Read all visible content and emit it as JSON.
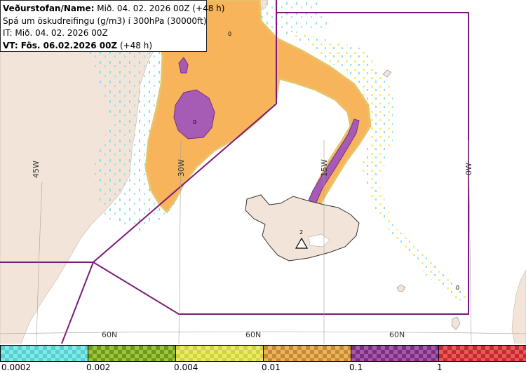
{
  "header": {
    "line1_bold": "Veðurstofan/Name:",
    "line1_rest": " Mið. 04. 02. 2026 00Z (+48 h)",
    "line2": "Spá um öskudreifingu (g/m3) í 300hPa (30000ft)",
    "line3": "IT: Mið. 04. 02. 2026 00Z",
    "line4_bold": "VT: Fös. 06.02.2026 00Z",
    "line4_rest": " (+48 h)"
  },
  "map": {
    "graticule_labels": {
      "lon_45w": "45W",
      "lon_30w": "30W",
      "lon_15w": "15W",
      "lon_0w": "0W",
      "lat_60n_a": "60N",
      "lat_60n_b": "60N",
      "lat_60n_c": "60N"
    },
    "contour_labels": {
      "greenland_top": "0",
      "greenland_core": "0",
      "iceland_source": "2",
      "southeast_tail": "0"
    },
    "colors": {
      "sea": "#ffffff",
      "land": "#f2e4d8",
      "border": "#7a1a7a",
      "orange": "#f7b45a",
      "purple": "#a65cb4",
      "yellow": "#f3ee74",
      "cyan": "#86dcdc"
    }
  },
  "legend": {
    "swatches": [
      {
        "color_a": "#4fd3d3",
        "color_b": "#8ae6e6"
      },
      {
        "color_a": "#6c9a1c",
        "color_b": "#9ec43a"
      },
      {
        "color_a": "#d3d33a",
        "color_b": "#eaea6a"
      },
      {
        "color_a": "#c98a2e",
        "color_b": "#e8b464"
      },
      {
        "color_a": "#7c2f80",
        "color_b": "#a658aa"
      },
      {
        "color_a": "#c8282e",
        "color_b": "#e85a5a"
      }
    ],
    "ticks": [
      "0.0002",
      "0.002",
      "0.004",
      "0.01",
      "0.1",
      "1"
    ]
  }
}
